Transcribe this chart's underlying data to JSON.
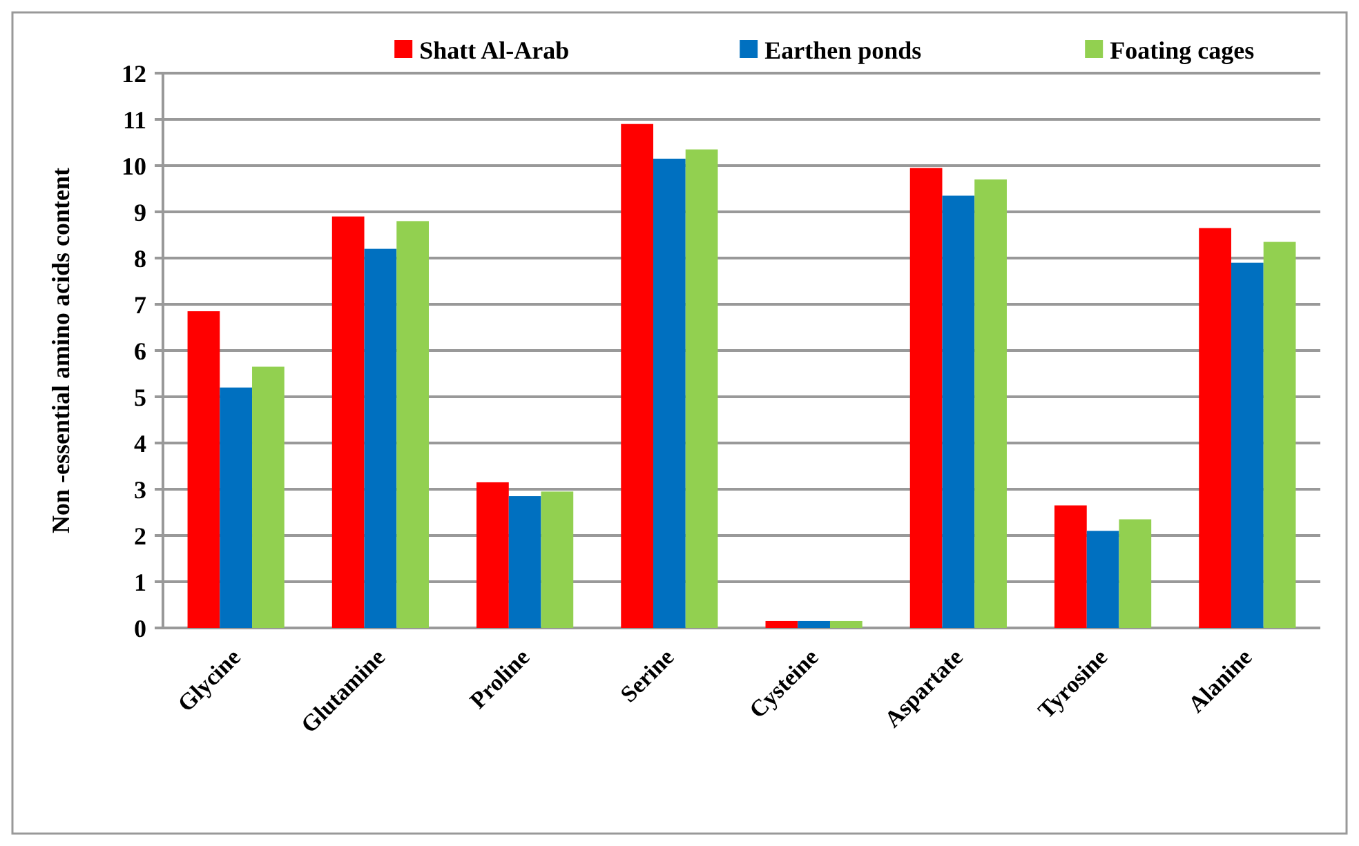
{
  "chart_data": {
    "type": "bar",
    "ylabel": "Non -essential amino acids content",
    "categories": [
      "Glycine",
      "Glutamine",
      "Proline",
      "Serine",
      "Cysteine",
      "Aspartate",
      "Tyrosine",
      "Alanine"
    ],
    "series": [
      {
        "name": "Shatt Al-Arab",
        "color": "#ff0000",
        "values": [
          6.85,
          8.9,
          3.15,
          10.9,
          0.15,
          9.95,
          2.65,
          8.65
        ]
      },
      {
        "name": "Earthen ponds",
        "color": "#0070c0",
        "values": [
          5.2,
          8.2,
          2.85,
          10.15,
          0.15,
          9.35,
          2.1,
          7.9
        ]
      },
      {
        "name": "Foating cages",
        "color": "#92d050",
        "values": [
          5.65,
          8.8,
          2.95,
          10.35,
          0.15,
          9.7,
          2.35,
          8.35
        ]
      }
    ],
    "ylim": [
      0,
      12
    ],
    "yticks": [
      0,
      1,
      2,
      3,
      4,
      5,
      6,
      7,
      8,
      9,
      10,
      11,
      12
    ],
    "grid": "y",
    "legend": "top"
  }
}
